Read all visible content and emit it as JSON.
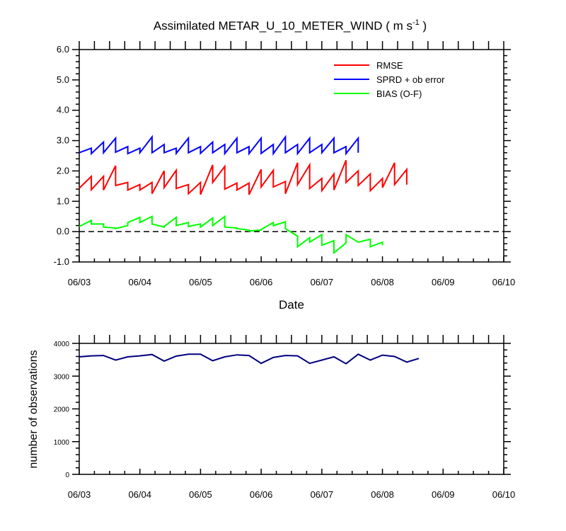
{
  "title_main": "Assimilated METAR_U_10_METER_WIND ( m s",
  "title_sup": "-1",
  "title_close": " )",
  "colors": {
    "rmse": "#ff0000",
    "sprd": "#0000ff",
    "bias": "#00ff00",
    "obs": "#000080",
    "zero": "#000000"
  },
  "chart_data": [
    {
      "type": "line",
      "xlabel": "Date",
      "ylabel": "",
      "ylim": [
        -1.0,
        6.0
      ],
      "xlim": [
        0,
        7
      ],
      "x_tick_labels": [
        "06/03",
        "06/04",
        "06/05",
        "06/06",
        "06/07",
        "06/08",
        "06/09",
        "06/10"
      ],
      "y_tick_labels": [
        "-1.0",
        "0.0",
        "1.0",
        "2.0",
        "3.0",
        "4.0",
        "5.0",
        "6.0"
      ],
      "y_ticks": [
        -1,
        0,
        1,
        2,
        3,
        4,
        5,
        6
      ],
      "reference_line": {
        "y": 0,
        "style": "dashed"
      },
      "legend": [
        "RMSE",
        "SPRD + ob error",
        "BIAS (O-F)"
      ],
      "legend_position": "top-right",
      "series": [
        {
          "name": "RMSE",
          "points": [
            [
              0,
              1.43
            ],
            [
              0.2,
              1.82
            ],
            [
              0.2,
              1.38
            ],
            [
              0.4,
              1.82
            ],
            [
              0.4,
              1.37
            ],
            [
              0.6,
              2.17
            ],
            [
              0.6,
              1.52
            ],
            [
              0.8,
              1.62
            ],
            [
              0.8,
              1.37
            ],
            [
              1.0,
              1.55
            ],
            [
              1.0,
              1.37
            ],
            [
              1.2,
              1.62
            ],
            [
              1.2,
              1.25
            ],
            [
              1.4,
              2.0
            ],
            [
              1.4,
              1.45
            ],
            [
              1.6,
              2.02
            ],
            [
              1.6,
              1.42
            ],
            [
              1.8,
              1.55
            ],
            [
              1.8,
              1.25
            ],
            [
              2.0,
              1.62
            ],
            [
              2.0,
              1.22
            ],
            [
              2.2,
              2.2
            ],
            [
              2.2,
              1.62
            ],
            [
              2.4,
              2.15
            ],
            [
              2.4,
              1.4
            ],
            [
              2.6,
              1.6
            ],
            [
              2.6,
              1.37
            ],
            [
              2.8,
              1.6
            ],
            [
              2.8,
              1.22
            ],
            [
              3.0,
              2.05
            ],
            [
              3.0,
              1.47
            ],
            [
              3.2,
              2.02
            ],
            [
              3.2,
              1.47
            ],
            [
              3.4,
              1.65
            ],
            [
              3.4,
              1.25
            ],
            [
              3.6,
              2.27
            ],
            [
              3.6,
              1.55
            ],
            [
              3.8,
              2.2
            ],
            [
              3.8,
              1.42
            ],
            [
              4.0,
              1.75
            ],
            [
              4.0,
              1.35
            ],
            [
              4.2,
              1.9
            ],
            [
              4.2,
              1.37
            ],
            [
              4.4,
              2.35
            ],
            [
              4.4,
              1.62
            ],
            [
              4.6,
              2.0
            ],
            [
              4.6,
              1.52
            ],
            [
              4.8,
              1.9
            ],
            [
              4.8,
              1.35
            ],
            [
              5.0,
              1.75
            ],
            [
              5.0,
              1.45
            ],
            [
              5.2,
              2.27
            ],
            [
              5.2,
              1.55
            ],
            [
              5.4,
              2.05
            ],
            [
              5.4,
              1.55
            ]
          ]
        },
        {
          "name": "SPRD + ob error",
          "points": [
            [
              0,
              2.6
            ],
            [
              0.2,
              2.75
            ],
            [
              0.2,
              2.57
            ],
            [
              0.4,
              2.95
            ],
            [
              0.4,
              2.6
            ],
            [
              0.6,
              3.08
            ],
            [
              0.6,
              2.62
            ],
            [
              0.8,
              2.8
            ],
            [
              0.8,
              2.57
            ],
            [
              1.0,
              2.75
            ],
            [
              1.0,
              2.6
            ],
            [
              1.2,
              3.12
            ],
            [
              1.2,
              2.6
            ],
            [
              1.4,
              2.87
            ],
            [
              1.4,
              2.6
            ],
            [
              1.6,
              2.75
            ],
            [
              1.6,
              2.58
            ],
            [
              1.8,
              3.08
            ],
            [
              1.8,
              2.6
            ],
            [
              2.0,
              2.8
            ],
            [
              2.0,
              2.58
            ],
            [
              2.2,
              2.95
            ],
            [
              2.2,
              2.6
            ],
            [
              2.4,
              2.87
            ],
            [
              2.4,
              2.57
            ],
            [
              2.6,
              3.08
            ],
            [
              2.6,
              2.6
            ],
            [
              2.8,
              2.8
            ],
            [
              2.8,
              2.57
            ],
            [
              3.0,
              3.08
            ],
            [
              3.0,
              2.58
            ],
            [
              3.2,
              2.87
            ],
            [
              3.2,
              2.57
            ],
            [
              3.4,
              3.12
            ],
            [
              3.4,
              2.6
            ],
            [
              3.6,
              2.87
            ],
            [
              3.6,
              2.57
            ],
            [
              3.8,
              3.08
            ],
            [
              3.8,
              2.6
            ],
            [
              4.0,
              2.87
            ],
            [
              4.0,
              2.6
            ],
            [
              4.2,
              3.08
            ],
            [
              4.2,
              2.6
            ],
            [
              4.4,
              2.8
            ],
            [
              4.4,
              2.57
            ],
            [
              4.6,
              3.08
            ],
            [
              4.6,
              2.6
            ]
          ]
        },
        {
          "name": "BIAS (O-F)",
          "points": [
            [
              0,
              0.17
            ],
            [
              0.2,
              0.37
            ],
            [
              0.2,
              0.25
            ],
            [
              0.4,
              0.25
            ],
            [
              0.4,
              0.15
            ],
            [
              0.6,
              0.12
            ],
            [
              0.6,
              0.1
            ],
            [
              0.8,
              0.2
            ],
            [
              0.8,
              0.3
            ],
            [
              1.0,
              0.47
            ],
            [
              1.0,
              0.3
            ],
            [
              1.2,
              0.5
            ],
            [
              1.2,
              0.25
            ],
            [
              1.4,
              0.15
            ],
            [
              1.4,
              0.17
            ],
            [
              1.6,
              0.47
            ],
            [
              1.6,
              0.2
            ],
            [
              1.8,
              0.3
            ],
            [
              1.8,
              0.17
            ],
            [
              2.0,
              0.25
            ],
            [
              2.0,
              0.15
            ],
            [
              2.2,
              0.45
            ],
            [
              2.2,
              0.2
            ],
            [
              2.4,
              0.5
            ],
            [
              2.4,
              0.15
            ],
            [
              2.6,
              0.12
            ],
            [
              2.6,
              0.1
            ],
            [
              2.8,
              0.05
            ],
            [
              2.8,
              0.02
            ],
            [
              3.0,
              0.05
            ],
            [
              3.0,
              0.07
            ],
            [
              3.2,
              0.3
            ],
            [
              3.2,
              0.2
            ],
            [
              3.4,
              0.32
            ],
            [
              3.4,
              0.1
            ],
            [
              3.6,
              -0.15
            ],
            [
              3.6,
              -0.5
            ],
            [
              3.8,
              -0.2
            ],
            [
              3.8,
              -0.35
            ],
            [
              4.0,
              -0.1
            ],
            [
              4.0,
              -0.45
            ],
            [
              4.2,
              -0.3
            ],
            [
              4.2,
              -0.7
            ],
            [
              4.4,
              -0.37
            ],
            [
              4.4,
              -0.1
            ],
            [
              4.6,
              -0.35
            ],
            [
              4.6,
              -0.35
            ],
            [
              4.8,
              -0.25
            ],
            [
              4.8,
              -0.5
            ],
            [
              5.0,
              -0.35
            ],
            [
              5.0,
              -0.45
            ]
          ]
        }
      ]
    },
    {
      "type": "line",
      "xlabel": "",
      "ylabel": "number of observations",
      "ylim": [
        0,
        4000
      ],
      "xlim": [
        0,
        7
      ],
      "x_tick_labels": [
        "06/03",
        "06/04",
        "06/05",
        "06/06",
        "06/07",
        "06/08",
        "06/09",
        "06/10"
      ],
      "y_tick_labels": [
        "0",
        "1000",
        "2000",
        "3000",
        "4000"
      ],
      "y_ticks": [
        0,
        1000,
        2000,
        3000,
        4000
      ],
      "series": [
        {
          "name": "number of observations",
          "points": [
            [
              0,
              3590
            ],
            [
              0.2,
              3620
            ],
            [
              0.4,
              3630
            ],
            [
              0.6,
              3490
            ],
            [
              0.8,
              3590
            ],
            [
              1.0,
              3620
            ],
            [
              1.2,
              3660
            ],
            [
              1.4,
              3460
            ],
            [
              1.6,
              3610
            ],
            [
              1.8,
              3670
            ],
            [
              2.0,
              3670
            ],
            [
              2.2,
              3470
            ],
            [
              2.4,
              3590
            ],
            [
              2.6,
              3650
            ],
            [
              2.8,
              3630
            ],
            [
              3.0,
              3390
            ],
            [
              3.2,
              3570
            ],
            [
              3.4,
              3630
            ],
            [
              3.6,
              3620
            ],
            [
              3.8,
              3390
            ],
            [
              4.0,
              3490
            ],
            [
              4.2,
              3590
            ],
            [
              4.4,
              3380
            ],
            [
              4.6,
              3670
            ],
            [
              4.8,
              3490
            ],
            [
              5.0,
              3640
            ],
            [
              5.2,
              3600
            ],
            [
              5.4,
              3430
            ],
            [
              5.6,
              3540
            ]
          ]
        }
      ]
    }
  ]
}
